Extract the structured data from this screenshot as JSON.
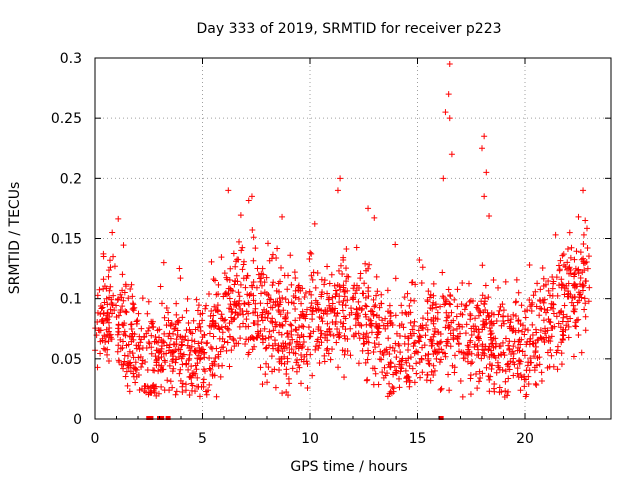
{
  "chart_data": {
    "type": "scatter",
    "title": "Day 333 of 2019, SRMTID for receiver p223",
    "xlabel": "GPS time / hours",
    "ylabel": "SRMTID / TECUs",
    "xlim": [
      0,
      24
    ],
    "ylim": [
      0,
      0.3
    ],
    "xticks": [
      0,
      5,
      10,
      15,
      20
    ],
    "yticks": [
      0,
      0.05,
      0.1,
      0.15,
      0.2,
      0.25,
      0.3
    ],
    "xtick_labels": [
      "0",
      "5",
      "10",
      "15",
      "20"
    ],
    "ytick_labels": [
      "0",
      "0.05",
      "0.1",
      "0.15",
      "0.2",
      "0.25",
      "0.3"
    ],
    "grid": true,
    "marker": "+",
    "color": "#ff0000",
    "series": [
      {
        "name": "SRMTID",
        "trend": [
          [
            0.0,
            0.075
          ],
          [
            0.5,
            0.08
          ],
          [
            1.0,
            0.085
          ],
          [
            1.5,
            0.065
          ],
          [
            2.0,
            0.052
          ],
          [
            2.5,
            0.045
          ],
          [
            3.0,
            0.05
          ],
          [
            3.5,
            0.06
          ],
          [
            4.0,
            0.06
          ],
          [
            4.5,
            0.055
          ],
          [
            5.0,
            0.06
          ],
          [
            5.5,
            0.065
          ],
          [
            6.0,
            0.08
          ],
          [
            6.5,
            0.095
          ],
          [
            7.0,
            0.1
          ],
          [
            7.5,
            0.09
          ],
          [
            8.0,
            0.08
          ],
          [
            8.5,
            0.075
          ],
          [
            9.0,
            0.07
          ],
          [
            9.5,
            0.075
          ],
          [
            10.0,
            0.08
          ],
          [
            10.5,
            0.08
          ],
          [
            11.0,
            0.085
          ],
          [
            11.5,
            0.09
          ],
          [
            12.0,
            0.09
          ],
          [
            12.5,
            0.085
          ],
          [
            13.0,
            0.075
          ],
          [
            13.5,
            0.06
          ],
          [
            14.0,
            0.055
          ],
          [
            14.5,
            0.058
          ],
          [
            15.0,
            0.065
          ],
          [
            15.5,
            0.07
          ],
          [
            16.0,
            0.075
          ],
          [
            16.5,
            0.08
          ],
          [
            17.0,
            0.065
          ],
          [
            17.5,
            0.065
          ],
          [
            18.0,
            0.075
          ],
          [
            18.5,
            0.06
          ],
          [
            19.0,
            0.055
          ],
          [
            19.5,
            0.055
          ],
          [
            20.0,
            0.06
          ],
          [
            20.5,
            0.065
          ],
          [
            21.0,
            0.08
          ],
          [
            21.5,
            0.09
          ],
          [
            22.0,
            0.1
          ],
          [
            22.5,
            0.105
          ],
          [
            23.0,
            0.11
          ]
        ],
        "notable_points": [
          [
            16.5,
            0.295
          ],
          [
            16.45,
            0.27
          ],
          [
            16.5,
            0.25
          ],
          [
            16.6,
            0.22
          ],
          [
            16.3,
            0.255
          ],
          [
            16.2,
            0.2
          ],
          [
            18.1,
            0.235
          ],
          [
            18.0,
            0.225
          ],
          [
            18.2,
            0.205
          ],
          [
            18.1,
            0.185
          ],
          [
            11.4,
            0.2
          ],
          [
            11.3,
            0.19
          ],
          [
            12.7,
            0.175
          ],
          [
            6.2,
            0.19
          ],
          [
            7.3,
            0.185
          ],
          [
            8.7,
            0.168
          ],
          [
            22.7,
            0.19
          ],
          [
            22.8,
            0.165
          ],
          [
            0.8,
            0.155
          ],
          [
            3.2,
            0.13
          ],
          [
            0.4,
            0.135
          ]
        ],
        "zero_points": [
          2.5,
          2.6,
          3.0,
          3.1,
          3.4,
          16.1
        ]
      }
    ]
  }
}
